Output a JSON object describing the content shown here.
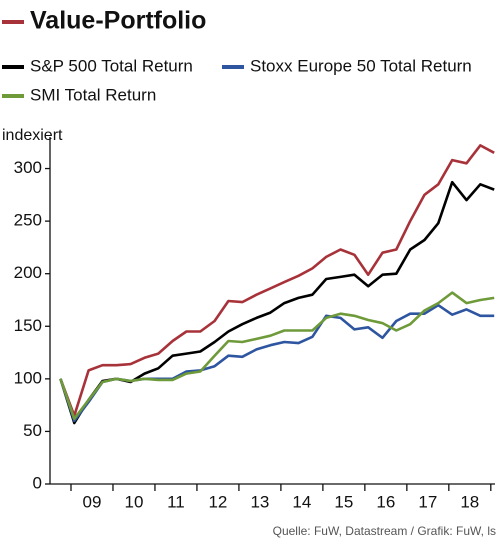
{
  "chart_data": {
    "type": "line",
    "ylabel": "indexiert",
    "source": "Quelle: FuW, Datastream / Grafik: FuW, ls",
    "x": [
      2008.75,
      2009.08,
      2009.42,
      2009.75,
      2010.08,
      2010.42,
      2010.75,
      2011.08,
      2011.42,
      2011.75,
      2012.08,
      2012.42,
      2012.75,
      2013.08,
      2013.42,
      2013.75,
      2014.08,
      2014.42,
      2014.75,
      2015.08,
      2015.42,
      2015.75,
      2016.08,
      2016.42,
      2016.75,
      2017.08,
      2017.42,
      2017.75,
      2018.08,
      2018.42,
      2018.75,
      2019.08
    ],
    "series": [
      {
        "name": "Value-Portfolio",
        "color": "#a8323a",
        "values": [
          100,
          65,
          108,
          113,
          113,
          114,
          120,
          124,
          136,
          145,
          145,
          155,
          174,
          173,
          180,
          186,
          192,
          198,
          205,
          216,
          223,
          218,
          199,
          220,
          223,
          250,
          275,
          285,
          308,
          305,
          322,
          315
        ]
      },
      {
        "name": "S&P 500 Total Return",
        "color": "#000000",
        "values": [
          100,
          58,
          80,
          98,
          100,
          97,
          105,
          110,
          122,
          124,
          126,
          135,
          145,
          152,
          158,
          163,
          172,
          177,
          180,
          195,
          197,
          199,
          188,
          199,
          200,
          223,
          232,
          248,
          287,
          270,
          285,
          280
        ]
      },
      {
        "name": "Stoxx Europe 50 Total Return",
        "color": "#2e55a0",
        "values": [
          100,
          60,
          78,
          97,
          100,
          98,
          100,
          100,
          100,
          107,
          108,
          112,
          122,
          121,
          128,
          132,
          135,
          134,
          140,
          160,
          158,
          147,
          149,
          139,
          155,
          162,
          162,
          170,
          161,
          166,
          160,
          160
        ]
      },
      {
        "name": "SMI Total Return",
        "color": "#6e9a3a",
        "values": [
          100,
          62,
          80,
          97,
          100,
          98,
          100,
          99,
          99,
          105,
          107,
          122,
          136,
          135,
          138,
          141,
          146,
          146,
          146,
          158,
          162,
          160,
          156,
          153,
          146,
          152,
          165,
          172,
          182,
          172,
          175,
          177
        ]
      }
    ],
    "xlim": [
      2008.5,
      2019.1
    ],
    "xticks": [
      {
        "value": 2009.5,
        "label": "09"
      },
      {
        "value": 2010.5,
        "label": "10"
      },
      {
        "value": 2011.5,
        "label": "11"
      },
      {
        "value": 2012.5,
        "label": "12"
      },
      {
        "value": 2013.5,
        "label": "13"
      },
      {
        "value": 2014.5,
        "label": "14"
      },
      {
        "value": 2015.5,
        "label": "15"
      },
      {
        "value": 2016.5,
        "label": "16"
      },
      {
        "value": 2017.5,
        "label": "17"
      },
      {
        "value": 2018.5,
        "label": "18"
      }
    ],
    "xminorticks": [
      2009,
      2010,
      2011,
      2012,
      2013,
      2014,
      2015,
      2016,
      2017,
      2018,
      2019
    ],
    "ylim": [
      0,
      330
    ],
    "yticks": [
      0,
      50,
      100,
      150,
      200,
      250,
      300
    ],
    "grid": false
  }
}
